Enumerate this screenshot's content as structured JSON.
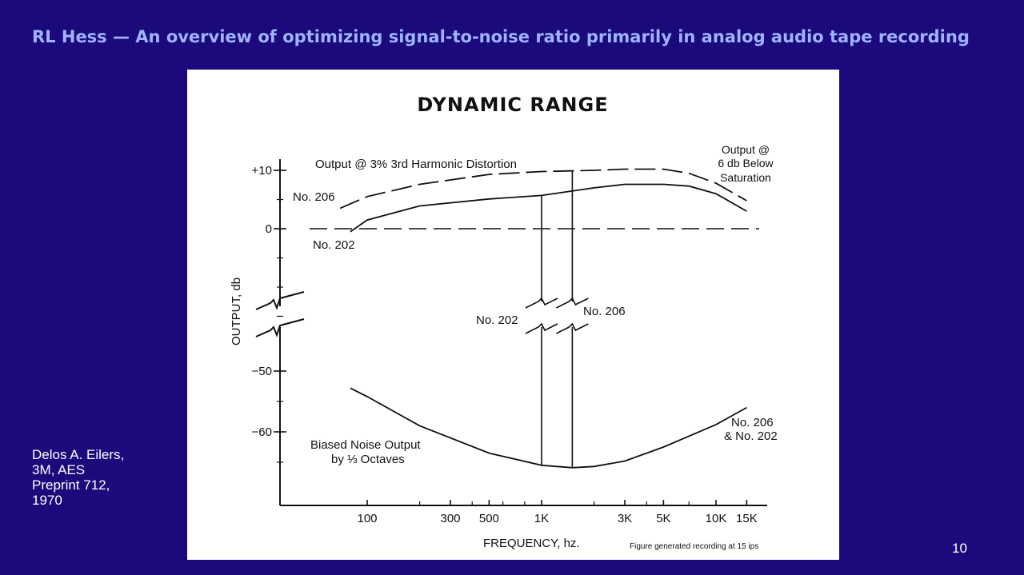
{
  "slide": {
    "title": "RL Hess — An overview of optimizing signal-to-noise ratio primarily in analog audio tape recording",
    "credit_lines": [
      "Delos A. Eilers,",
      "3M, AES",
      "Preprint 712,",
      "1970"
    ],
    "page_number": "10"
  },
  "chart_data": {
    "type": "line",
    "title": "DYNAMIC RANGE",
    "xlabel": "FREQUENCY, hz.",
    "ylabel": "OUTPUT, db",
    "x_scale": "log",
    "x_ticks": [
      {
        "value": 100,
        "label": "100"
      },
      {
        "value": 300,
        "label": "300"
      },
      {
        "value": 500,
        "label": "500"
      },
      {
        "value": 1000,
        "label": "1K"
      },
      {
        "value": 3000,
        "label": "3K"
      },
      {
        "value": 5000,
        "label": "5K"
      },
      {
        "value": 10000,
        "label": "10K"
      },
      {
        "value": 15000,
        "label": "15K"
      }
    ],
    "y_ticks": [
      {
        "value": 10,
        "label": "+10"
      },
      {
        "value": 0,
        "label": "0"
      },
      {
        "value": -50,
        "label": "−50"
      },
      {
        "value": -60,
        "label": "−60"
      }
    ],
    "y_axis_break": true,
    "series": [
      {
        "name": "No. 206",
        "style": "dashed",
        "x": [
          70,
          100,
          200,
          500,
          1000,
          2000,
          3000,
          5000,
          7000,
          10000,
          15000
        ],
        "y": [
          3.5,
          5.5,
          7.6,
          9.3,
          9.8,
          10.0,
          10.2,
          10.2,
          9.5,
          7.8,
          4.8
        ]
      },
      {
        "name": "No. 202",
        "style": "solid",
        "x": [
          80,
          100,
          200,
          500,
          1000,
          2000,
          3000,
          5000,
          7000,
          10000,
          15000
        ],
        "y": [
          -0.5,
          1.5,
          3.9,
          5.1,
          5.7,
          7.0,
          7.6,
          7.6,
          7.3,
          6.0,
          3.0
        ]
      },
      {
        "name": "No. 206 & No. 202",
        "style": "solid",
        "x": [
          80,
          100,
          200,
          500,
          1000,
          1500,
          2000,
          3000,
          5000,
          10000,
          15000
        ],
        "y": [
          -52.8,
          -54.2,
          -59.0,
          -63.5,
          -65.5,
          -65.9,
          -65.7,
          -64.8,
          -62.5,
          -58.8,
          -56.0
        ]
      }
    ],
    "reference_line": {
      "y": 0,
      "style": "dashed"
    },
    "vertical_markers": [
      {
        "label": "No. 202",
        "x": 1000
      },
      {
        "label": "No. 206",
        "x": 1500
      }
    ],
    "annotations": [
      "Output @ 3% 3rd Harmonic Distortion",
      "Output @",
      "6 db Below",
      "Saturation",
      "Biased Noise Output",
      "by ⅓ Octaves",
      "Figure generated recording at 15 ips"
    ],
    "grid": false
  }
}
